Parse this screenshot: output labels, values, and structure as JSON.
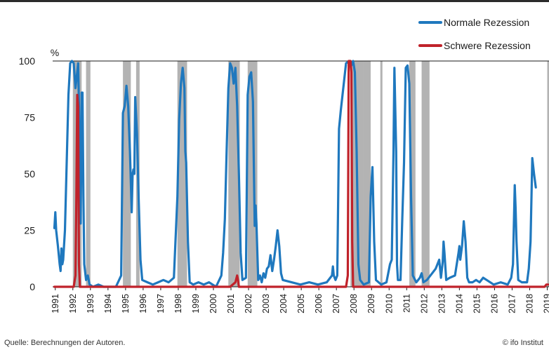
{
  "chart_data": {
    "type": "line",
    "unit_label": "%",
    "ylim": [
      0,
      100
    ],
    "y_ticks": [
      0,
      25,
      50,
      75,
      100
    ],
    "x_tick_labels": [
      "1991",
      "1992",
      "1993",
      "1994",
      "1995",
      "1996",
      "1997",
      "1998",
      "1999",
      "2000",
      "2001",
      "2002",
      "2003",
      "2004",
      "2005",
      "2006",
      "2007",
      "2008",
      "2009",
      "2010",
      "2011",
      "2012",
      "2013",
      "2014",
      "2015",
      "2016",
      "2017",
      "2018",
      "2019"
    ],
    "xlim": [
      1990.9,
      2019.15
    ],
    "grid": false,
    "legend_position": "top-right",
    "shaded_periods": [
      [
        1992.05,
        1992.55
      ],
      [
        1992.8,
        1993.05
      ],
      [
        1994.9,
        1995.35
      ],
      [
        1995.65,
        1995.85
      ],
      [
        1998.0,
        1998.55
      ],
      [
        2000.9,
        2001.55
      ],
      [
        2002.0,
        2002.55
      ],
      [
        2007.85,
        2008.6
      ],
      [
        2008.6,
        2009.0
      ],
      [
        2009.55,
        2009.65
      ],
      [
        2011.2,
        2011.55
      ],
      [
        2011.9,
        2012.35
      ],
      [
        2019.05,
        2019.15
      ]
    ],
    "series": [
      {
        "name": "Normale Rezession",
        "color": "#1f78be",
        "points": [
          [
            1991.0,
            26
          ],
          [
            1991.05,
            33
          ],
          [
            1991.1,
            25
          ],
          [
            1991.2,
            18
          ],
          [
            1991.3,
            10
          ],
          [
            1991.35,
            7
          ],
          [
            1991.4,
            17
          ],
          [
            1991.45,
            10
          ],
          [
            1991.5,
            12
          ],
          [
            1991.6,
            25
          ],
          [
            1991.7,
            55
          ],
          [
            1991.8,
            85
          ],
          [
            1991.9,
            99
          ],
          [
            1992.0,
            100
          ],
          [
            1992.1,
            99
          ],
          [
            1992.2,
            88
          ],
          [
            1992.3,
            95
          ],
          [
            1992.35,
            99
          ],
          [
            1992.4,
            80
          ],
          [
            1992.5,
            28
          ],
          [
            1992.55,
            86
          ],
          [
            1992.6,
            86
          ],
          [
            1992.65,
            40
          ],
          [
            1992.7,
            10
          ],
          [
            1992.8,
            3
          ],
          [
            1992.9,
            5
          ],
          [
            1993.0,
            1
          ],
          [
            1993.2,
            0
          ],
          [
            1993.5,
            1
          ],
          [
            1993.8,
            0
          ],
          [
            1994.2,
            0
          ],
          [
            1994.5,
            0
          ],
          [
            1994.8,
            5
          ],
          [
            1994.9,
            77
          ],
          [
            1995.0,
            80
          ],
          [
            1995.1,
            89
          ],
          [
            1995.2,
            80
          ],
          [
            1995.3,
            60
          ],
          [
            1995.4,
            33
          ],
          [
            1995.45,
            50
          ],
          [
            1995.5,
            52
          ],
          [
            1995.55,
            50
          ],
          [
            1995.6,
            84
          ],
          [
            1995.7,
            68
          ],
          [
            1995.8,
            38
          ],
          [
            1995.9,
            12
          ],
          [
            1996.0,
            3
          ],
          [
            1996.3,
            2
          ],
          [
            1996.6,
            1
          ],
          [
            1996.9,
            2
          ],
          [
            1997.2,
            3
          ],
          [
            1997.5,
            2
          ],
          [
            1997.8,
            4
          ],
          [
            1998.0,
            40
          ],
          [
            1998.1,
            74
          ],
          [
            1998.2,
            90
          ],
          [
            1998.3,
            97
          ],
          [
            1998.4,
            88
          ],
          [
            1998.45,
            60
          ],
          [
            1998.5,
            55
          ],
          [
            1998.6,
            20
          ],
          [
            1998.7,
            2
          ],
          [
            1998.9,
            1
          ],
          [
            1999.2,
            2
          ],
          [
            1999.5,
            1
          ],
          [
            1999.8,
            2
          ],
          [
            2000.2,
            0
          ],
          [
            2000.5,
            5
          ],
          [
            2000.6,
            15
          ],
          [
            2000.7,
            30
          ],
          [
            2000.8,
            60
          ],
          [
            2000.9,
            88
          ],
          [
            2001.0,
            99
          ],
          [
            2001.1,
            97
          ],
          [
            2001.2,
            90
          ],
          [
            2001.3,
            97
          ],
          [
            2001.4,
            80
          ],
          [
            2001.5,
            50
          ],
          [
            2001.6,
            15
          ],
          [
            2001.7,
            3
          ],
          [
            2001.9,
            4
          ],
          [
            2002.0,
            85
          ],
          [
            2002.1,
            93
          ],
          [
            2002.2,
            95
          ],
          [
            2002.3,
            82
          ],
          [
            2002.4,
            27
          ],
          [
            2002.45,
            36
          ],
          [
            2002.5,
            28
          ],
          [
            2002.6,
            3
          ],
          [
            2002.7,
            5
          ],
          [
            2002.8,
            2
          ],
          [
            2002.9,
            6
          ],
          [
            2003.0,
            4
          ],
          [
            2003.1,
            8
          ],
          [
            2003.2,
            9
          ],
          [
            2003.3,
            14
          ],
          [
            2003.4,
            7
          ],
          [
            2003.5,
            12
          ],
          [
            2003.6,
            18
          ],
          [
            2003.7,
            25
          ],
          [
            2003.8,
            18
          ],
          [
            2003.9,
            6
          ],
          [
            2004.0,
            3
          ],
          [
            2004.5,
            2
          ],
          [
            2005.0,
            1
          ],
          [
            2005.5,
            2
          ],
          [
            2006.0,
            1
          ],
          [
            2006.5,
            2
          ],
          [
            2006.8,
            5
          ],
          [
            2006.85,
            9
          ],
          [
            2006.9,
            5
          ],
          [
            2007.0,
            3
          ],
          [
            2007.1,
            5
          ],
          [
            2007.2,
            70
          ],
          [
            2007.3,
            78
          ],
          [
            2007.4,
            85
          ],
          [
            2007.5,
            92
          ],
          [
            2007.6,
            99
          ],
          [
            2007.8,
            100
          ],
          [
            2007.9,
            98
          ],
          [
            2008.0,
            100
          ],
          [
            2008.1,
            95
          ],
          [
            2008.2,
            60
          ],
          [
            2008.3,
            10
          ],
          [
            2008.4,
            3
          ],
          [
            2008.6,
            1
          ],
          [
            2008.9,
            2
          ],
          [
            2009.0,
            40
          ],
          [
            2009.1,
            53
          ],
          [
            2009.2,
            20
          ],
          [
            2009.3,
            3
          ],
          [
            2009.6,
            1
          ],
          [
            2009.9,
            2
          ],
          [
            2010.1,
            10
          ],
          [
            2010.2,
            12
          ],
          [
            2010.3,
            60
          ],
          [
            2010.35,
            97
          ],
          [
            2010.45,
            60
          ],
          [
            2010.5,
            10
          ],
          [
            2010.55,
            3
          ],
          [
            2010.7,
            3
          ],
          [
            2010.8,
            30
          ],
          [
            2010.9,
            55
          ],
          [
            2011.0,
            97
          ],
          [
            2011.1,
            98
          ],
          [
            2011.2,
            90
          ],
          [
            2011.3,
            40
          ],
          [
            2011.4,
            5
          ],
          [
            2011.6,
            2
          ],
          [
            2011.8,
            4
          ],
          [
            2011.9,
            6
          ],
          [
            2012.0,
            2
          ],
          [
            2012.2,
            3
          ],
          [
            2012.5,
            6
          ],
          [
            2012.7,
            8
          ],
          [
            2012.8,
            10
          ],
          [
            2012.9,
            12
          ],
          [
            2013.0,
            4
          ],
          [
            2013.1,
            11
          ],
          [
            2013.15,
            20
          ],
          [
            2013.2,
            15
          ],
          [
            2013.3,
            3
          ],
          [
            2013.5,
            4
          ],
          [
            2013.8,
            5
          ],
          [
            2014.0,
            15
          ],
          [
            2014.05,
            18
          ],
          [
            2014.1,
            12
          ],
          [
            2014.2,
            18
          ],
          [
            2014.3,
            29
          ],
          [
            2014.4,
            20
          ],
          [
            2014.5,
            4
          ],
          [
            2014.6,
            2
          ],
          [
            2014.8,
            2
          ],
          [
            2015.0,
            3
          ],
          [
            2015.2,
            2
          ],
          [
            2015.4,
            4
          ],
          [
            2015.6,
            3
          ],
          [
            2015.8,
            2
          ],
          [
            2016.0,
            1
          ],
          [
            2016.4,
            2
          ],
          [
            2016.8,
            1
          ],
          [
            2017.0,
            4
          ],
          [
            2017.1,
            10
          ],
          [
            2017.2,
            45
          ],
          [
            2017.25,
            35
          ],
          [
            2017.3,
            20
          ],
          [
            2017.4,
            3
          ],
          [
            2017.6,
            2
          ],
          [
            2017.9,
            2
          ],
          [
            2018.0,
            8
          ],
          [
            2018.1,
            20
          ],
          [
            2018.2,
            57
          ],
          [
            2018.3,
            50
          ],
          [
            2018.4,
            44
          ]
        ]
      },
      {
        "name": "Schwere Rezession",
        "color": "#c0222a",
        "points": [
          [
            1991.0,
            0
          ],
          [
            1992.1,
            0
          ],
          [
            1992.2,
            5
          ],
          [
            1992.25,
            40
          ],
          [
            1992.3,
            85
          ],
          [
            1992.35,
            80
          ],
          [
            1992.4,
            10
          ],
          [
            1992.45,
            0
          ],
          [
            2001.0,
            0
          ],
          [
            2001.3,
            2
          ],
          [
            2001.4,
            5
          ],
          [
            2001.45,
            3
          ],
          [
            2001.5,
            0
          ],
          [
            2007.6,
            0
          ],
          [
            2007.7,
            5
          ],
          [
            2007.75,
            100
          ],
          [
            2007.85,
            100
          ],
          [
            2007.9,
            95
          ],
          [
            2007.95,
            20
          ],
          [
            2008.0,
            0
          ],
          [
            2018.9,
            0
          ],
          [
            2019.0,
            1
          ],
          [
            2019.1,
            1
          ]
        ]
      }
    ]
  },
  "legend": [
    {
      "label": "Normale Rezession",
      "color": "#1f78be"
    },
    {
      "label": "Schwere Rezession",
      "color": "#c0222a"
    }
  ],
  "footer": {
    "source": "Quelle: Berechnungen der Autoren.",
    "copyright": "© ifo Institut"
  }
}
